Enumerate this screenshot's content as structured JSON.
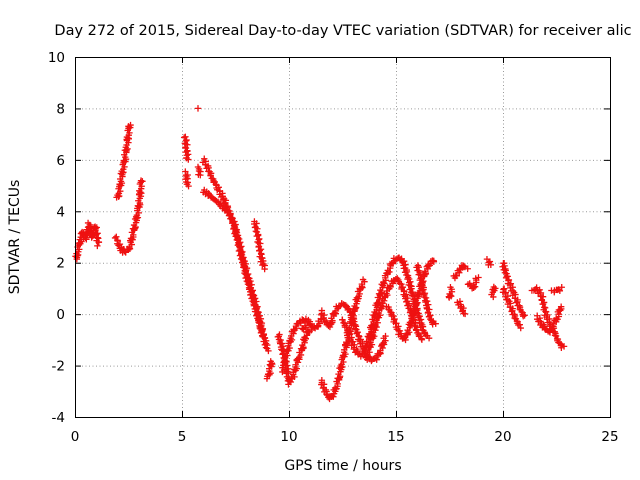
{
  "chart_data": {
    "type": "scatter",
    "title": "Day 272 of 2015, Sidereal Day-to-day VTEC variation (SDTVAR) for receiver alic",
    "xlabel": "GPS time / hours",
    "ylabel": "SDTVAR / TECUs",
    "xlim": [
      0,
      25
    ],
    "ylim": [
      -4,
      10
    ],
    "xticks": [
      "0",
      "5",
      "10",
      "15",
      "20",
      "25"
    ],
    "yticks": [
      "-4",
      "-2",
      "0",
      "2",
      "4",
      "6",
      "8",
      "10"
    ],
    "grid": true,
    "marker": "plus",
    "color": "#ee1111",
    "series": [
      {
        "name": "SDTVAR",
        "segments": [
          [
            [
              0.05,
              2.1
            ],
            [
              0.2,
              2.7
            ],
            [
              0.35,
              3.2
            ],
            [
              0.5,
              2.9
            ],
            [
              0.65,
              3.5
            ],
            [
              0.8,
              3.0
            ],
            [
              0.95,
              3.4
            ],
            [
              1.1,
              2.7
            ]
          ],
          [
            [
              1.9,
              3.0
            ],
            [
              2.1,
              2.6
            ],
            [
              2.3,
              2.4
            ],
            [
              2.5,
              2.5
            ],
            [
              2.6,
              2.7
            ],
            [
              2.7,
              3.1
            ],
            [
              2.85,
              3.6
            ],
            [
              3.0,
              4.3
            ],
            [
              3.1,
              5.2
            ]
          ],
          [
            [
              2.0,
              4.5
            ],
            [
              2.15,
              5.2
            ],
            [
              2.3,
              5.9
            ],
            [
              2.45,
              6.7
            ],
            [
              2.55,
              7.4
            ]
          ],
          [
            [
              5.15,
              6.9
            ],
            [
              5.2,
              6.5
            ],
            [
              5.25,
              6.0
            ]
          ],
          [
            [
              5.2,
              5.5
            ],
            [
              5.25,
              5.0
            ]
          ],
          [
            [
              5.8,
              5.7
            ],
            [
              5.82,
              5.4
            ]
          ],
          [
            [
              5.8,
              8.0
            ]
          ],
          [
            [
              6.0,
              6.0
            ],
            [
              6.2,
              5.7
            ],
            [
              6.4,
              5.3
            ],
            [
              6.6,
              5.0
            ],
            [
              6.8,
              4.7
            ],
            [
              7.0,
              4.4
            ],
            [
              7.2,
              4.0
            ],
            [
              7.4,
              3.6
            ],
            [
              7.6,
              3.0
            ],
            [
              7.8,
              2.3
            ],
            [
              8.0,
              1.7
            ],
            [
              8.2,
              1.1
            ],
            [
              8.4,
              0.5
            ],
            [
              8.6,
              -0.1
            ],
            [
              8.8,
              -0.8
            ],
            [
              9.0,
              -1.4
            ]
          ],
          [
            [
              6.0,
              4.8
            ],
            [
              6.3,
              4.6
            ],
            [
              6.6,
              4.4
            ],
            [
              6.9,
              4.2
            ],
            [
              7.2,
              3.9
            ],
            [
              7.4,
              3.5
            ],
            [
              7.6,
              2.9
            ],
            [
              7.8,
              2.2
            ],
            [
              8.0,
              1.5
            ],
            [
              8.2,
              0.9
            ],
            [
              8.4,
              0.3
            ],
            [
              8.6,
              -0.3
            ],
            [
              8.8,
              -0.9
            ]
          ],
          [
            [
              8.4,
              3.6
            ],
            [
              8.55,
              3.0
            ],
            [
              8.7,
              2.2
            ],
            [
              8.85,
              1.8
            ]
          ],
          [
            [
              9.0,
              -2.5
            ],
            [
              9.1,
              -2.2
            ],
            [
              9.2,
              -1.8
            ]
          ],
          [
            [
              9.5,
              -0.8
            ],
            [
              9.7,
              -1.4
            ],
            [
              9.9,
              -2.1
            ],
            [
              10.0,
              -2.7
            ],
            [
              10.2,
              -2.4
            ],
            [
              10.4,
              -1.8
            ],
            [
              10.6,
              -1.4
            ],
            [
              10.8,
              -0.8
            ],
            [
              11.0,
              -0.6
            ]
          ],
          [
            [
              9.7,
              -2.2
            ],
            [
              9.9,
              -1.5
            ],
            [
              10.1,
              -0.9
            ],
            [
              10.3,
              -0.5
            ],
            [
              10.5,
              -0.3
            ],
            [
              10.7,
              -0.2
            ],
            [
              10.9,
              -0.3
            ],
            [
              11.1,
              -0.5
            ],
            [
              11.3,
              -0.5
            ],
            [
              11.5,
              -0.2
            ]
          ],
          [
            [
              10.6,
              -0.6
            ],
            [
              10.8,
              -0.5
            ]
          ],
          [
            [
              11.5,
              -2.6
            ],
            [
              11.7,
              -3.0
            ],
            [
              11.9,
              -3.3
            ],
            [
              12.1,
              -3.1
            ],
            [
              12.3,
              -2.6
            ],
            [
              12.5,
              -1.8
            ],
            [
              12.7,
              -1.1
            ],
            [
              12.9,
              -0.4
            ],
            [
              13.1,
              0.3
            ],
            [
              13.3,
              0.9
            ],
            [
              13.5,
              1.3
            ]
          ],
          [
            [
              11.5,
              0.1
            ],
            [
              11.7,
              -0.3
            ],
            [
              11.9,
              -0.5
            ],
            [
              12.1,
              0.0
            ],
            [
              12.3,
              0.3
            ],
            [
              12.5,
              0.4
            ],
            [
              12.7,
              0.3
            ],
            [
              12.9,
              0.0
            ],
            [
              13.1,
              -0.5
            ],
            [
              13.3,
              -1.0
            ],
            [
              13.5,
              -1.4
            ],
            [
              13.7,
              -1.7
            ],
            [
              13.9,
              -1.8
            ],
            [
              14.1,
              -1.7
            ],
            [
              14.3,
              -1.4
            ],
            [
              14.5,
              -0.9
            ]
          ],
          [
            [
              12.5,
              -0.2
            ],
            [
              12.7,
              -0.6
            ],
            [
              12.9,
              -1.0
            ],
            [
              13.1,
              -1.4
            ],
            [
              13.3,
              -1.6
            ],
            [
              13.5,
              -1.5
            ],
            [
              13.7,
              -1.0
            ],
            [
              13.9,
              -0.4
            ],
            [
              14.1,
              0.3
            ],
            [
              14.3,
              0.9
            ],
            [
              14.5,
              1.4
            ],
            [
              14.7,
              1.8
            ],
            [
              14.9,
              2.1
            ],
            [
              15.1,
              2.2
            ],
            [
              15.3,
              2.1
            ],
            [
              15.5,
              1.6
            ],
            [
              15.7,
              1.0
            ],
            [
              15.9,
              0.4
            ],
            [
              16.1,
              -0.2
            ],
            [
              16.3,
              -0.7
            ],
            [
              16.5,
              -0.9
            ]
          ],
          [
            [
              13.6,
              -1.8
            ],
            [
              13.8,
              -1.2
            ],
            [
              14.0,
              -0.6
            ],
            [
              14.2,
              0.0
            ],
            [
              14.4,
              0.5
            ],
            [
              14.6,
              0.9
            ],
            [
              14.8,
              1.2
            ],
            [
              15.0,
              1.4
            ],
            [
              15.2,
              1.2
            ],
            [
              15.4,
              0.8
            ],
            [
              15.6,
              0.3
            ],
            [
              15.8,
              -0.2
            ],
            [
              16.0,
              -0.7
            ],
            [
              16.2,
              -1.0
            ]
          ],
          [
            [
              14.6,
              0.3
            ],
            [
              14.8,
              0.0
            ],
            [
              15.0,
              -0.4
            ],
            [
              15.2,
              -0.8
            ],
            [
              15.4,
              -1.0
            ],
            [
              15.6,
              -0.6
            ],
            [
              15.8,
              0.0
            ],
            [
              16.0,
              0.6
            ],
            [
              16.2,
              1.2
            ],
            [
              16.4,
              1.7
            ],
            [
              16.6,
              2.0
            ],
            [
              16.8,
              2.1
            ]
          ],
          [
            [
              16.0,
              1.9
            ],
            [
              16.2,
              1.2
            ],
            [
              16.4,
              0.5
            ],
            [
              16.6,
              -0.2
            ],
            [
              16.8,
              -0.4
            ]
          ],
          [
            [
              17.7,
              1.4
            ],
            [
              17.9,
              1.6
            ],
            [
              18.1,
              1.9
            ],
            [
              18.3,
              1.8
            ]
          ],
          [
            [
              17.9,
              0.5
            ],
            [
              18.1,
              0.2
            ],
            [
              18.2,
              0.0
            ]
          ],
          [
            [
              18.4,
              1.2
            ],
            [
              18.6,
              1.0
            ],
            [
              18.8,
              1.4
            ]
          ],
          [
            [
              17.5,
              0.6
            ],
            [
              17.6,
              1.0
            ]
          ],
          [
            [
              19.3,
              2.1
            ],
            [
              19.4,
              1.9
            ]
          ],
          [
            [
              19.5,
              0.7
            ],
            [
              19.6,
              1.1
            ]
          ],
          [
            [
              20.0,
              2.0
            ],
            [
              20.2,
              1.4
            ],
            [
              20.4,
              1.0
            ],
            [
              20.6,
              0.6
            ],
            [
              20.8,
              0.2
            ],
            [
              21.0,
              -0.1
            ]
          ],
          [
            [
              20.0,
              1.0
            ],
            [
              20.2,
              0.6
            ],
            [
              20.4,
              0.2
            ],
            [
              20.6,
              -0.2
            ],
            [
              20.8,
              -0.5
            ]
          ],
          [
            [
              21.4,
              0.9
            ],
            [
              21.6,
              1.0
            ],
            [
              21.8,
              0.7
            ],
            [
              22.0,
              0.0
            ],
            [
              22.2,
              -0.4
            ],
            [
              22.4,
              -0.7
            ],
            [
              22.6,
              -1.1
            ],
            [
              22.8,
              -1.3
            ]
          ],
          [
            [
              21.6,
              -0.1
            ],
            [
              21.8,
              -0.4
            ],
            [
              22.0,
              -0.6
            ],
            [
              22.2,
              -0.7
            ],
            [
              22.4,
              -0.4
            ],
            [
              22.6,
              0.0
            ],
            [
              22.7,
              0.3
            ]
          ],
          [
            [
              22.3,
              0.9
            ],
            [
              22.5,
              0.9
            ],
            [
              22.7,
              1.0
            ]
          ]
        ]
      }
    ]
  }
}
